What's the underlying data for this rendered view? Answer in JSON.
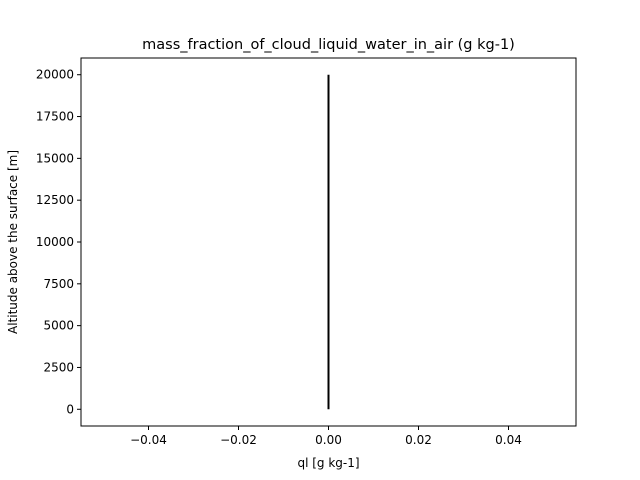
{
  "chart_data": {
    "type": "line",
    "title": "mass_fraction_of_cloud_liquid_water_in_air (g kg-1)",
    "xlabel": "ql [g kg-1]",
    "ylabel": "Altitude above the surface [m]",
    "xlim": [
      -0.055,
      0.055
    ],
    "ylim": [
      -1000,
      21000
    ],
    "x_ticks": [
      -0.04,
      -0.02,
      0.0,
      0.02,
      0.04
    ],
    "x_tick_labels": [
      "−0.04",
      "−0.02",
      "0.00",
      "0.02",
      "0.04"
    ],
    "y_ticks": [
      0,
      2500,
      5000,
      7500,
      10000,
      12500,
      15000,
      17500,
      20000
    ],
    "y_tick_labels": [
      "0",
      "2500",
      "5000",
      "7500",
      "10000",
      "12500",
      "15000",
      "17500",
      "20000"
    ],
    "grid": false,
    "series": [
      {
        "color": "#000000",
        "x": [
          0,
          0
        ],
        "y": [
          0,
          20000
        ]
      }
    ]
  }
}
